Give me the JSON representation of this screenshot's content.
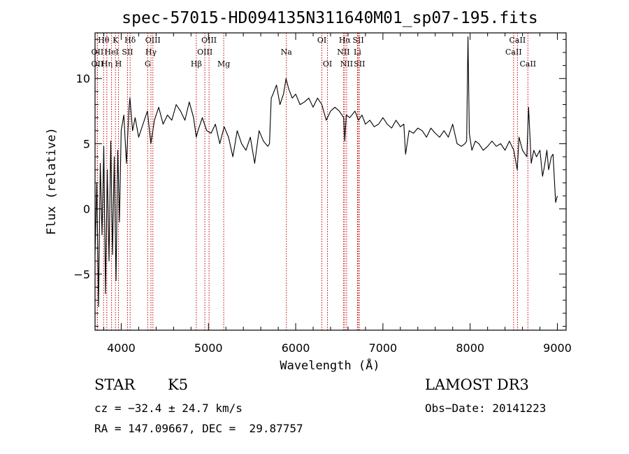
{
  "chart_data": {
    "type": "line",
    "title": "spec-57015-HD094135N311640M01_sp07-195.fits",
    "xlabel": "Wavelength (Å)",
    "ylabel": "Flux (relative)",
    "xlim": [
      3700,
      9100
    ],
    "ylim": [
      -9.3,
      13.5
    ],
    "xticks": [
      4000,
      5000,
      6000,
      7000,
      8000,
      9000
    ],
    "xtick_labels": [
      "4000",
      "5000",
      "6000",
      "7000",
      "8000",
      "9000"
    ],
    "yticks": [
      -5,
      0,
      5,
      10
    ],
    "ytick_labels": [
      "−5",
      "0",
      "5",
      "10"
    ],
    "series": [
      {
        "name": "spectrum",
        "x": [
          3700,
          3720,
          3740,
          3760,
          3780,
          3800,
          3820,
          3840,
          3860,
          3880,
          3900,
          3920,
          3940,
          3960,
          3980,
          4000,
          4030,
          4060,
          4090,
          4100,
          4130,
          4160,
          4200,
          4250,
          4300,
          4340,
          4380,
          4430,
          4480,
          4530,
          4580,
          4630,
          4680,
          4730,
          4780,
          4830,
          4860,
          4880,
          4930,
          4980,
          5030,
          5080,
          5130,
          5180,
          5230,
          5280,
          5330,
          5380,
          5430,
          5480,
          5530,
          5580,
          5630,
          5680,
          5700,
          5720,
          5740,
          5780,
          5820,
          5860,
          5890,
          5920,
          5960,
          6000,
          6050,
          6100,
          6150,
          6200,
          6250,
          6300,
          6350,
          6400,
          6450,
          6500,
          6550,
          6563,
          6580,
          6620,
          6680,
          6720,
          6760,
          6800,
          6850,
          6900,
          6950,
          7000,
          7050,
          7100,
          7150,
          7200,
          7240,
          7260,
          7300,
          7350,
          7400,
          7450,
          7500,
          7550,
          7600,
          7650,
          7700,
          7750,
          7800,
          7850,
          7900,
          7940,
          7960,
          7975,
          7990,
          8020,
          8060,
          8100,
          8150,
          8200,
          8250,
          8300,
          8350,
          8400,
          8450,
          8500,
          8540,
          8560,
          8600,
          8650,
          8670,
          8700,
          8730,
          8760,
          8800,
          8830,
          8850,
          8880,
          8900,
          8930,
          8950,
          8980,
          9000
        ],
        "y": [
          -3.5,
          2.0,
          -7.5,
          3.5,
          -2.0,
          4.8,
          -6.5,
          3.0,
          -4.0,
          5.2,
          -3.5,
          4.0,
          -5.5,
          4.5,
          -1.0,
          6.0,
          7.2,
          3.5,
          7.8,
          8.5,
          6.0,
          7.0,
          5.5,
          6.5,
          7.5,
          5.0,
          6.8,
          7.8,
          6.5,
          7.2,
          6.8,
          8.0,
          7.5,
          6.8,
          8.2,
          7.0,
          5.5,
          6.0,
          7.0,
          6.0,
          5.8,
          6.5,
          5.0,
          6.3,
          5.5,
          4.0,
          6.0,
          5.0,
          4.5,
          5.5,
          3.5,
          6.0,
          5.2,
          4.8,
          5.0,
          8.5,
          8.8,
          9.5,
          8.0,
          8.8,
          10.0,
          9.2,
          8.5,
          8.8,
          8.0,
          8.2,
          8.5,
          7.8,
          8.5,
          8.0,
          6.8,
          7.5,
          7.8,
          7.5,
          7.0,
          5.2,
          7.2,
          7.0,
          7.5,
          6.8,
          7.2,
          6.5,
          6.8,
          6.3,
          6.5,
          7.0,
          6.5,
          6.2,
          6.8,
          6.3,
          6.5,
          4.2,
          6.0,
          5.8,
          6.2,
          6.0,
          5.5,
          6.2,
          5.8,
          5.5,
          6.0,
          5.5,
          6.5,
          5.0,
          4.8,
          5.0,
          5.2,
          13.2,
          5.8,
          4.5,
          5.2,
          5.0,
          4.5,
          4.8,
          5.2,
          4.8,
          5.0,
          4.5,
          5.2,
          4.5,
          3.0,
          5.5,
          4.5,
          4.0,
          7.8,
          3.5,
          4.5,
          4.0,
          4.5,
          2.5,
          3.2,
          4.5,
          3.0,
          4.0,
          4.2,
          0.5,
          1.0
        ]
      }
    ],
    "line_ids": [
      {
        "label": "Hθ",
        "wave": 3798,
        "row": 0
      },
      {
        "label": "OII",
        "wave": 3727,
        "row": 1
      },
      {
        "label": "OII",
        "wave": 3727,
        "row": 2
      },
      {
        "label": "Hη",
        "wave": 3835,
        "row": 2
      },
      {
        "label": "HeI",
        "wave": 3889,
        "row": 1
      },
      {
        "label": "K",
        "wave": 3934,
        "row": 0
      },
      {
        "label": "H",
        "wave": 3969,
        "row": 2
      },
      {
        "label": "SII",
        "wave": 4072,
        "row": 1
      },
      {
        "label": "Hδ",
        "wave": 4102,
        "row": 0
      },
      {
        "label": "OIII",
        "wave": 4363,
        "row": 0
      },
      {
        "label": "Hγ",
        "wave": 4341,
        "row": 1
      },
      {
        "label": "G",
        "wave": 4304,
        "row": 2
      },
      {
        "label": "Hβ",
        "wave": 4861,
        "row": 2
      },
      {
        "label": "OIII",
        "wave": 5007,
        "row": 0
      },
      {
        "label": "OIII",
        "wave": 4959,
        "row": 1
      },
      {
        "label": "Mg",
        "wave": 5175,
        "row": 2
      },
      {
        "label": "Na",
        "wave": 5893,
        "row": 1
      },
      {
        "label": "OI",
        "wave": 6300,
        "row": 0
      },
      {
        "label": "OI",
        "wave": 6364,
        "row": 2
      },
      {
        "label": "Hα",
        "wave": 6563,
        "row": 0
      },
      {
        "label": "NII",
        "wave": 6548,
        "row": 1
      },
      {
        "label": "NII",
        "wave": 6584,
        "row": 2
      },
      {
        "label": "SII",
        "wave": 6717,
        "row": 0
      },
      {
        "label": "Li",
        "wave": 6708,
        "row": 1
      },
      {
        "label": "SII",
        "wave": 6731,
        "row": 2
      },
      {
        "label": "CaII",
        "wave": 8542,
        "row": 0
      },
      {
        "label": "CaII",
        "wave": 8498,
        "row": 1
      },
      {
        "label": "CaII",
        "wave": 8662,
        "row": 2
      }
    ]
  },
  "info": {
    "object_class": "STAR",
    "subclass": "K5",
    "survey": "LAMOST DR3",
    "redshift": "cz = −32.4 ± 24.7 km/s",
    "obs_date": "Obs−Date: 20141223",
    "coords": "RA = 147.09667, DEC =  29.87757"
  },
  "colors": {
    "line_marker": "#c00000",
    "spectrum": "#000000",
    "axis": "#000000"
  }
}
